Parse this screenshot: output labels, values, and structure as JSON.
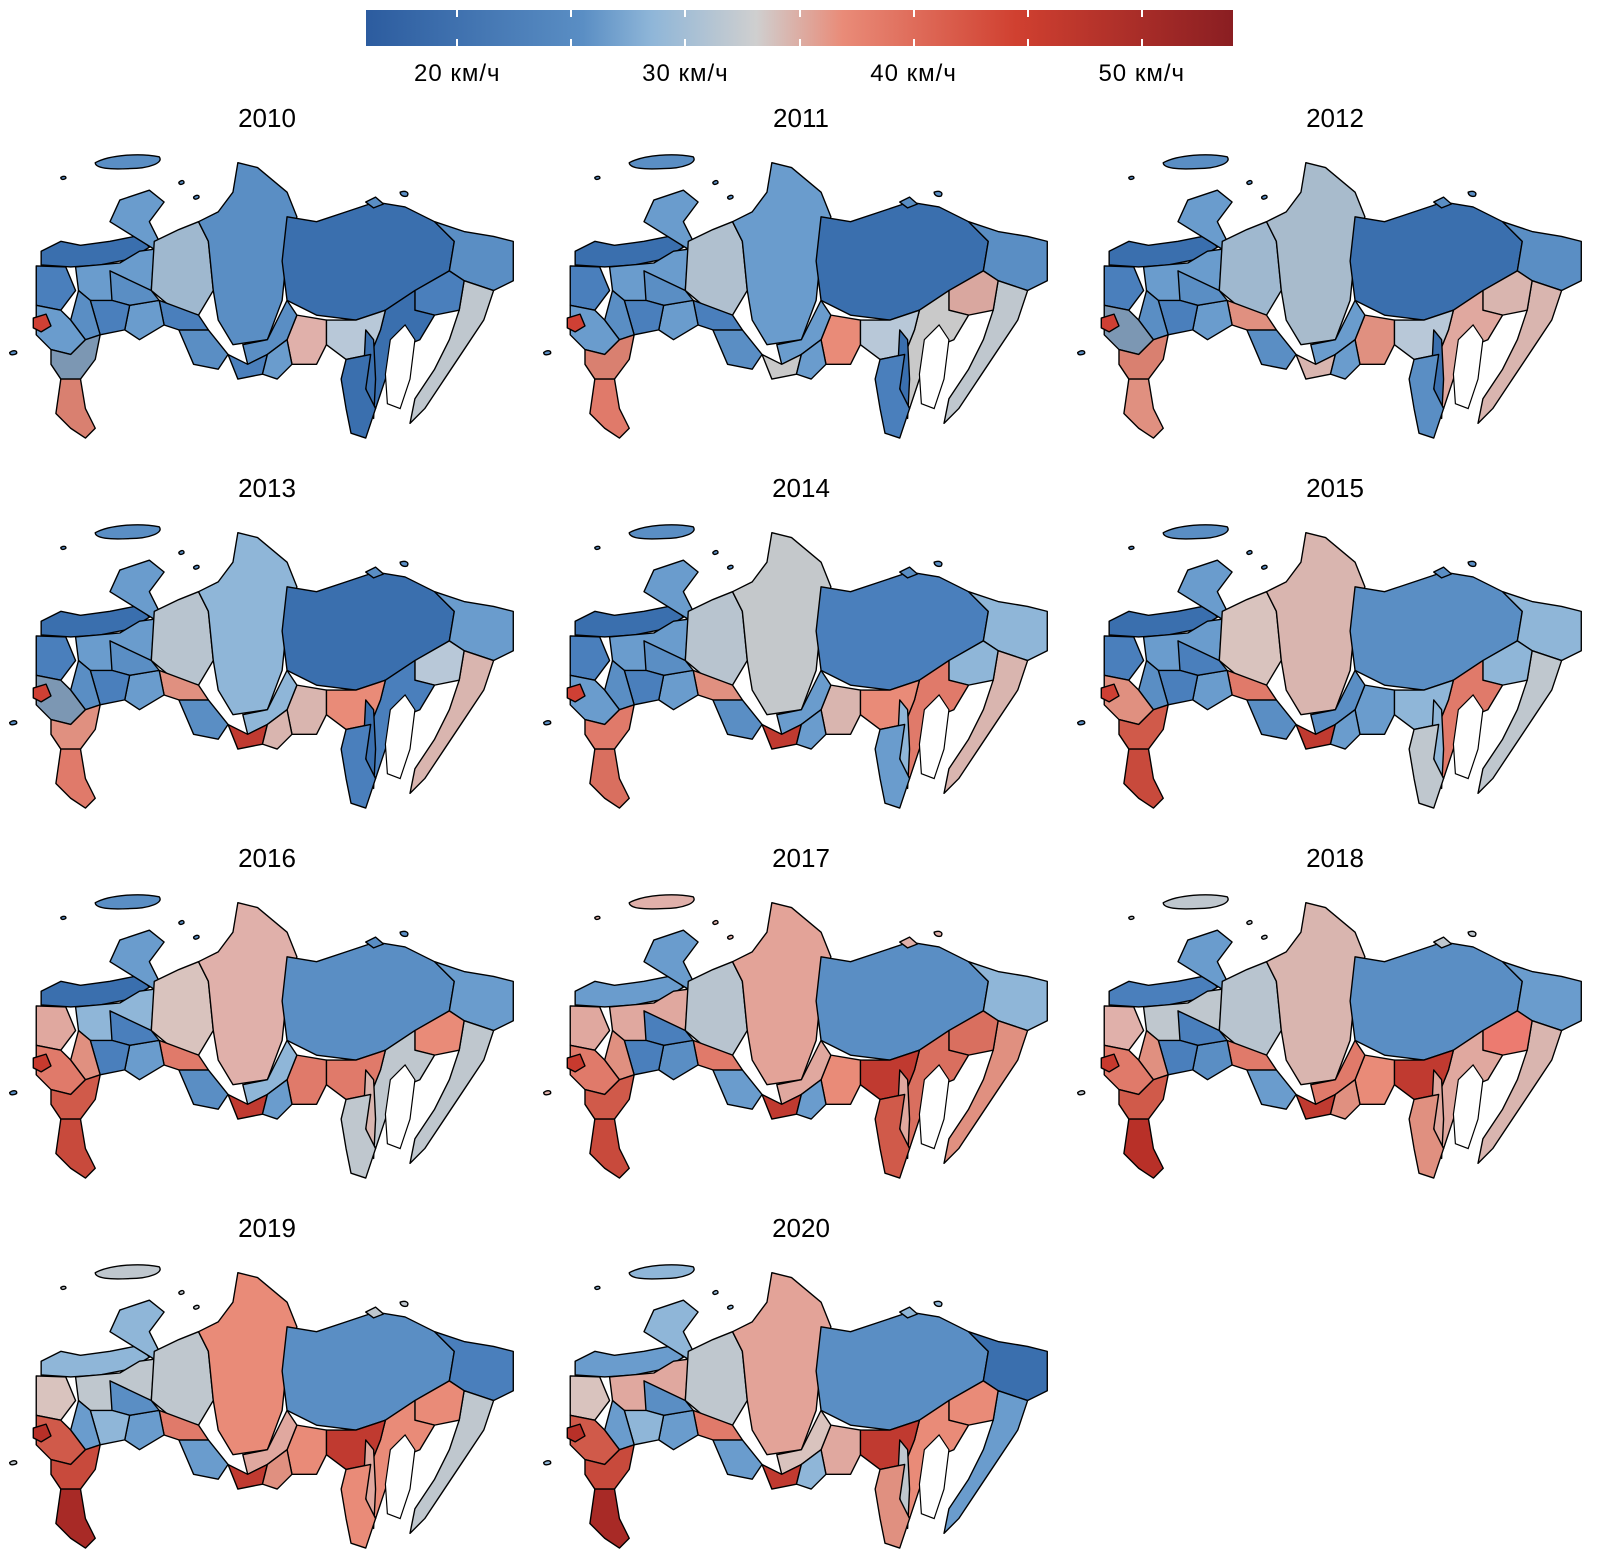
{
  "legend": {
    "ticks": [
      "20 км/ч",
      "30 км/ч",
      "40 км/ч",
      "50 км/ч"
    ],
    "range": [
      16,
      54
    ],
    "colors": [
      "#2c5c9f",
      "#5a8ec4",
      "#8fb6d8",
      "#cfcfcf",
      "#e98b78",
      "#d04030",
      "#8a1e22"
    ]
  },
  "years": [
    "2010",
    "2011",
    "2012",
    "2013",
    "2014",
    "2015",
    "2016",
    "2017",
    "2018",
    "2019",
    "2020"
  ],
  "panels": [
    {
      "year": "2010",
      "regions": {
        "far_north_island": "#5a8ec4",
        "kola": "#3a6fae",
        "karelia": "#4a7fbc",
        "arkhangelsk": "#6a9ccd",
        "komi": "#6a9ccd",
        "yamal": "#9fb8cf",
        "krasnoyarsk": "#5a8ec4",
        "yakutia": "#3a6fae",
        "chukotka": "#5a8ec4",
        "kamchatka": "#bfc7ce",
        "magadan": "#4a7fbc",
        "khabarovsk": "#3a6fae",
        "amur": "#b8c8d8",
        "zabaykalsky": "#e0b0aa",
        "irkutsk": "#5a8ec4",
        "buryatia": "#4a7fbc",
        "tyva": "#6a9ccd",
        "altai": "#5a8ec4",
        "novosibirsk": "#4a7fbc",
        "omsk": "#6a9ccd",
        "tyumen": "#5a8ec4",
        "sverdlovsk": "#4a7fbc",
        "perm": "#5a8ec4",
        "central": "#6a9ccd",
        "moscow": "#cf4034",
        "south": "#7c97b3",
        "caucasus": "#d98070",
        "sakhalin": "#3a6fae",
        "primorye": "#3a6fae"
      }
    },
    {
      "year": "2011",
      "regions": {
        "far_north_island": "#5a8ec4",
        "kola": "#3a6fae",
        "karelia": "#4a7fbc",
        "arkhangelsk": "#6a9ccd",
        "komi": "#6a9ccd",
        "yamal": "#b0c0cf",
        "krasnoyarsk": "#6a9ccd",
        "yakutia": "#3a6fae",
        "chukotka": "#5a8ec4",
        "kamchatka": "#bfc7ce",
        "magadan": "#d9a79f",
        "khabarovsk": "#c9c9c9",
        "amur": "#b8c8d8",
        "zabaykalsky": "#e98b78",
        "irkutsk": "#6a9ccd",
        "buryatia": "#c9c9c9",
        "tyva": "#6a9ccd",
        "altai": "#5a8ec4",
        "novosibirsk": "#4a7fbc",
        "omsk": "#6a9ccd",
        "tyumen": "#5a8ec4",
        "sverdlovsk": "#4a7fbc",
        "perm": "#5a8ec4",
        "central": "#6a9ccd",
        "moscow": "#cf4034",
        "south": "#d98070",
        "caucasus": "#e07a6a",
        "sakhalin": "#3a6fae",
        "primorye": "#4a7fbc"
      }
    },
    {
      "year": "2012",
      "regions": {
        "far_north_island": "#5a8ec4",
        "kola": "#3a6fae",
        "karelia": "#4a7fbc",
        "arkhangelsk": "#6a9ccd",
        "komi": "#6a9ccd",
        "yamal": "#9fb8cf",
        "krasnoyarsk": "#a8bbcc",
        "yakutia": "#3a6fae",
        "chukotka": "#5a8ec4",
        "kamchatka": "#d9b5af",
        "magadan": "#d9b5af",
        "khabarovsk": "#e0a89f",
        "amur": "#b8c8d8",
        "zabaykalsky": "#e09080",
        "irkutsk": "#6a9ccd",
        "buryatia": "#d9b5af",
        "tyva": "#6a9ccd",
        "altai": "#5a8ec4",
        "novosibirsk": "#e09080",
        "omsk": "#6a9ccd",
        "tyumen": "#5a8ec4",
        "sverdlovsk": "#4a7fbc",
        "perm": "#5a8ec4",
        "central": "#7c97b3",
        "moscow": "#cf4034",
        "south": "#d98070",
        "caucasus": "#e09080",
        "sakhalin": "#3a6fae",
        "primorye": "#5a8ec4"
      }
    },
    {
      "year": "2013",
      "regions": {
        "far_north_island": "#5a8ec4",
        "kola": "#3a6fae",
        "karelia": "#4a7fbc",
        "arkhangelsk": "#6a9ccd",
        "komi": "#6a9ccd",
        "yamal": "#b8c4cf",
        "krasnoyarsk": "#8fb6d8",
        "yakutia": "#3a6fae",
        "chukotka": "#6a9ccd",
        "kamchatka": "#d9b5af",
        "magadan": "#b8c8d8",
        "khabarovsk": "#4a7fbc",
        "amur": "#e98b78",
        "zabaykalsky": "#d9b5af",
        "irkutsk": "#8fb6d8",
        "buryatia": "#c03a30",
        "tyva": "#d9b5af",
        "altai": "#5a8ec4",
        "novosibirsk": "#e09080",
        "omsk": "#6a9ccd",
        "tyumen": "#5a8ec4",
        "sverdlovsk": "#4a7fbc",
        "perm": "#5a8ec4",
        "central": "#7c97b3",
        "moscow": "#cf4034",
        "south": "#e09080",
        "caucasus": "#e07a6a",
        "sakhalin": "#3a6fae",
        "primorye": "#4a7fbc"
      }
    },
    {
      "year": "2014",
      "regions": {
        "far_north_island": "#5a8ec4",
        "kola": "#3a6fae",
        "karelia": "#4a7fbc",
        "arkhangelsk": "#6a9ccd",
        "komi": "#6a9ccd",
        "yamal": "#b8c4cf",
        "krasnoyarsk": "#c4c8cb",
        "yakutia": "#4a7fbc",
        "chukotka": "#8fb6d8",
        "kamchatka": "#d9b5af",
        "magadan": "#8fb6d8",
        "khabarovsk": "#e07a6a",
        "amur": "#e98b78",
        "zabaykalsky": "#d9b5af",
        "irkutsk": "#6a9ccd",
        "buryatia": "#c03a30",
        "tyva": "#6a9ccd",
        "altai": "#5a8ec4",
        "novosibirsk": "#e09080",
        "omsk": "#6a9ccd",
        "tyumen": "#5a8ec4",
        "sverdlovsk": "#4a7fbc",
        "perm": "#5a8ec4",
        "central": "#6a9ccd",
        "moscow": "#cf4034",
        "south": "#e07a6a",
        "caucasus": "#d96f5f",
        "sakhalin": "#8fb6d8",
        "primorye": "#6a9ccd"
      }
    },
    {
      "year": "2015",
      "regions": {
        "far_north_island": "#5a8ec4",
        "kola": "#3a6fae",
        "karelia": "#4a7fbc",
        "arkhangelsk": "#6a9ccd",
        "komi": "#6a9ccd",
        "yamal": "#d9c3be",
        "krasnoyarsk": "#d9b5af",
        "yakutia": "#5a8ec4",
        "chukotka": "#8fb6d8",
        "kamchatka": "#bfc7ce",
        "magadan": "#8fb6d8",
        "khabarovsk": "#e07a6a",
        "amur": "#8fb6d8",
        "zabaykalsky": "#6a9ccd",
        "irkutsk": "#5a8ec4",
        "buryatia": "#c03a30",
        "tyva": "#6a9ccd",
        "altai": "#5a8ec4",
        "novosibirsk": "#e07a6a",
        "omsk": "#6a9ccd",
        "tyumen": "#4a7fbc",
        "sverdlovsk": "#4a7fbc",
        "perm": "#5a8ec4",
        "central": "#e09080",
        "moscow": "#cf4034",
        "south": "#d05a4a",
        "caucasus": "#c84a3c",
        "sakhalin": "#8fb6d8",
        "primorye": "#bfc7ce"
      }
    },
    {
      "year": "2016",
      "regions": {
        "far_north_island": "#5a8ec4",
        "kola": "#3a6fae",
        "karelia": "#e0a89f",
        "arkhangelsk": "#8fb6d8",
        "komi": "#6a9ccd",
        "yamal": "#d9c3be",
        "krasnoyarsk": "#e0b0aa",
        "yakutia": "#5a8ec4",
        "chukotka": "#6a9ccd",
        "kamchatka": "#bfc7ce",
        "magadan": "#e98b78",
        "khabarovsk": "#bfc7ce",
        "amur": "#e07a6a",
        "zabaykalsky": "#e07a6a",
        "irkutsk": "#8fb6d8",
        "buryatia": "#c03a30",
        "tyva": "#6a9ccd",
        "altai": "#5a8ec4",
        "novosibirsk": "#e07a6a",
        "omsk": "#6a9ccd",
        "tyumen": "#4a7fbc",
        "sverdlovsk": "#4a7fbc",
        "perm": "#e09080",
        "central": "#e07a6a",
        "moscow": "#c83a2e",
        "south": "#d05a4a",
        "caucasus": "#c84a3c",
        "sakhalin": "#d9b5af",
        "primorye": "#bfc7ce"
      }
    },
    {
      "year": "2017",
      "regions": {
        "far_north_island": "#e0b0aa",
        "kola": "#6a9ccd",
        "karelia": "#e0a89f",
        "arkhangelsk": "#e0a89f",
        "komi": "#6a9ccd",
        "yamal": "#b8c4cf",
        "krasnoyarsk": "#e3a398",
        "yakutia": "#5a8ec4",
        "chukotka": "#8fb6d8",
        "kamchatka": "#e09080",
        "magadan": "#d96f5f",
        "khabarovsk": "#d96f5f",
        "amur": "#c03a30",
        "zabaykalsky": "#e98b78",
        "irkutsk": "#e0a89f",
        "buryatia": "#c03a30",
        "tyva": "#6a9ccd",
        "altai": "#6a9ccd",
        "novosibirsk": "#e07a6a",
        "omsk": "#5a8ec4",
        "tyumen": "#4a7fbc",
        "sverdlovsk": "#4a7fbc",
        "perm": "#e09080",
        "central": "#e07a6a",
        "moscow": "#c83a2e",
        "south": "#d05a4a",
        "caucasus": "#c84a3c",
        "sakhalin": "#e0a89f",
        "primorye": "#d05a4a"
      }
    },
    {
      "year": "2018",
      "regions": {
        "far_north_island": "#bfc7ce",
        "kola": "#4a7fbc",
        "karelia": "#e0b0aa",
        "arkhangelsk": "#bfc7ce",
        "komi": "#6a9ccd",
        "yamal": "#b8c4cf",
        "krasnoyarsk": "#d9b5af",
        "yakutia": "#5a8ec4",
        "chukotka": "#6a9ccd",
        "kamchatka": "#d9b5af",
        "magadan": "#ec7b70",
        "khabarovsk": "#e0a89f",
        "amur": "#c03a30",
        "zabaykalsky": "#e98b78",
        "irkutsk": "#e07a6a",
        "buryatia": "#c03a30",
        "tyva": "#e09080",
        "altai": "#6a9ccd",
        "novosibirsk": "#e07a6a",
        "omsk": "#5a8ec4",
        "tyumen": "#4a7fbc",
        "sverdlovsk": "#4a7fbc",
        "perm": "#e09080",
        "central": "#e07a6a",
        "moscow": "#c83a2e",
        "south": "#d05a4a",
        "caucasus": "#b83028",
        "sakhalin": "#e0a89f",
        "primorye": "#e09080"
      }
    },
    {
      "year": "2019",
      "regions": {
        "far_north_island": "#bfc7ce",
        "kola": "#8fb6d8",
        "karelia": "#d9c3be",
        "arkhangelsk": "#bfc7ce",
        "komi": "#8fb6d8",
        "yamal": "#bfc7ce",
        "krasnoyarsk": "#e98b78",
        "yakutia": "#5a8ec4",
        "chukotka": "#4a7fbc",
        "kamchatka": "#bfc7ce",
        "magadan": "#e98b78",
        "khabarovsk": "#e98b78",
        "amur": "#c03a30",
        "zabaykalsky": "#e98b78",
        "irkutsk": "#e0a89f",
        "buryatia": "#c03a30",
        "tyva": "#e09080",
        "altai": "#6a9ccd",
        "novosibirsk": "#e07a6a",
        "omsk": "#6a9ccd",
        "tyumen": "#5a8ec4",
        "sverdlovsk": "#8fb6d8",
        "perm": "#6a9ccd",
        "central": "#d05a4a",
        "moscow": "#b83028",
        "south": "#c84a3c",
        "caucasus": "#a82a26",
        "sakhalin": "#e0a89f",
        "primorye": "#e98b78"
      }
    },
    {
      "year": "2020",
      "regions": {
        "far_north_island": "#8fb6d8",
        "kola": "#6a9ccd",
        "karelia": "#d9c3be",
        "arkhangelsk": "#e0a89f",
        "komi": "#8fb6d8",
        "yamal": "#bfc7ce",
        "krasnoyarsk": "#e3a398",
        "yakutia": "#5a8ec4",
        "chukotka": "#3a6fae",
        "kamchatka": "#6a9ccd",
        "magadan": "#e98b78",
        "khabarovsk": "#e98b78",
        "amur": "#c03a30",
        "zabaykalsky": "#e0a89f",
        "irkutsk": "#d9c3be",
        "buryatia": "#c03a30",
        "tyva": "#8fb6d8",
        "altai": "#6a9ccd",
        "novosibirsk": "#e07a6a",
        "omsk": "#6a9ccd",
        "tyumen": "#5a8ec4",
        "sverdlovsk": "#8fb6d8",
        "perm": "#6a9ccd",
        "central": "#d05a4a",
        "moscow": "#b83028",
        "south": "#c84a3c",
        "caucasus": "#a82a26",
        "sakhalin": "#bfc7ce",
        "primorye": "#e09080"
      }
    }
  ]
}
